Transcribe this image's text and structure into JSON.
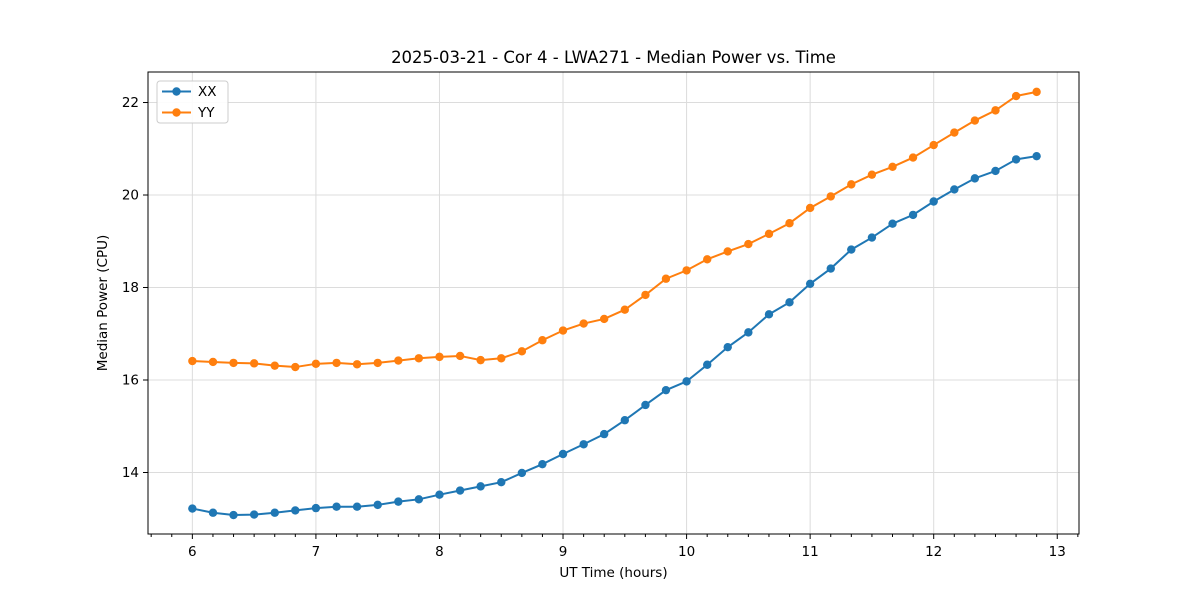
{
  "chart_data": {
    "type": "line",
    "title": "2025-03-21 - Cor 4 - LWA271 - Median Power vs. Time",
    "xlabel": "UT Time (hours)",
    "ylabel": "Median Power (CPU)",
    "xlim": [
      5.641,
      13.176
    ],
    "ylim": [
      12.67,
      22.66
    ],
    "x_major_ticks": [
      6,
      7,
      8,
      9,
      10,
      11,
      12,
      13
    ],
    "y_major_ticks": [
      14,
      16,
      18,
      20,
      22
    ],
    "x_minor_tick_interval_hours": 0.1667,
    "grid": true,
    "legend_position": "upper-left",
    "grid_color": "#dcdcdc",
    "spine_color": "#000000",
    "x": [
      6.0,
      6.167,
      6.333,
      6.5,
      6.667,
      6.833,
      7.0,
      7.167,
      7.333,
      7.5,
      7.667,
      7.833,
      8.0,
      8.167,
      8.333,
      8.5,
      8.667,
      8.833,
      9.0,
      9.167,
      9.333,
      9.5,
      9.667,
      9.833,
      10.0,
      10.167,
      10.333,
      10.5,
      10.667,
      10.833,
      11.0,
      11.167,
      11.333,
      11.5,
      11.667,
      11.833,
      12.0,
      12.167,
      12.333,
      12.5,
      12.667,
      12.833
    ],
    "series": [
      {
        "name": "XX",
        "color": "#1f77b4",
        "values": [
          13.22,
          13.13,
          13.08,
          13.09,
          13.13,
          13.18,
          13.23,
          13.26,
          13.26,
          13.3,
          13.37,
          13.42,
          13.52,
          13.61,
          13.7,
          13.79,
          13.99,
          14.18,
          14.4,
          14.61,
          14.83,
          15.13,
          15.46,
          15.78,
          15.97,
          16.33,
          16.71,
          17.03,
          17.42,
          17.68,
          18.08,
          18.41,
          18.82,
          19.08,
          19.38,
          19.57,
          19.86,
          20.12,
          20.36,
          20.52,
          20.77,
          20.84
        ]
      },
      {
        "name": "YY",
        "color": "#ff7f0e",
        "values": [
          16.41,
          16.39,
          16.37,
          16.36,
          16.31,
          16.28,
          16.35,
          16.37,
          16.34,
          16.37,
          16.42,
          16.47,
          16.5,
          16.52,
          16.43,
          16.47,
          16.62,
          16.86,
          17.07,
          17.22,
          17.32,
          17.52,
          17.84,
          18.19,
          18.37,
          18.61,
          18.78,
          18.94,
          19.16,
          19.39,
          19.72,
          19.97,
          20.23,
          20.44,
          20.61,
          20.81,
          21.08,
          21.35,
          21.61,
          21.83,
          22.14,
          22.23
        ]
      }
    ]
  }
}
